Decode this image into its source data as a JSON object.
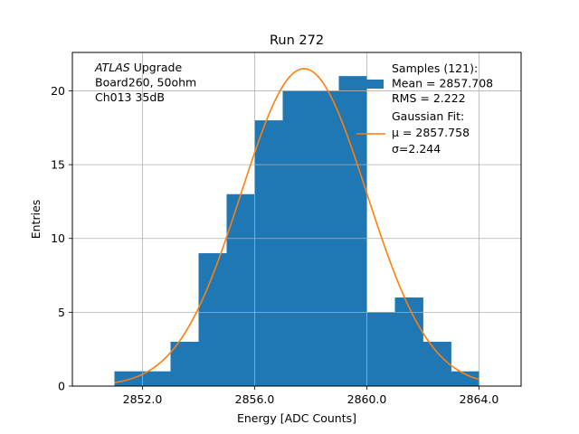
{
  "chart_data": {
    "type": "bar",
    "title": "Run 272",
    "xlabel": "Energy [ADC Counts]",
    "ylabel": "Entries",
    "xlim": [
      2849.5,
      2865.5
    ],
    "ylim": [
      0,
      22.6
    ],
    "xticks": [
      2852.0,
      2856.0,
      2860.0,
      2864.0
    ],
    "xtick_labels": [
      "2852.0",
      "2856.0",
      "2860.0",
      "2864.0"
    ],
    "yticks": [
      0,
      5,
      10,
      15,
      20
    ],
    "ytick_labels": [
      "0",
      "5",
      "10",
      "15",
      "20"
    ],
    "grid": true,
    "bin_edges": [
      2851,
      2852,
      2853,
      2854,
      2855,
      2856,
      2857,
      2858,
      2859,
      2860,
      2861,
      2862,
      2863,
      2864
    ],
    "values": [
      1,
      1,
      3,
      9,
      13,
      18,
      20,
      20,
      21,
      5,
      6,
      3,
      1
    ],
    "bar_color": "#1f77b4",
    "fit_color": "#ff7f0e",
    "fit": {
      "mu": 2857.758,
      "sigma": 2.244,
      "amplitude": 21.5,
      "x_range": [
        2851.0,
        2864.0
      ]
    },
    "annotation": {
      "lines": [
        {
          "italic": "ATLAS",
          "rest": " Upgrade"
        },
        {
          "italic": "",
          "rest": " Board260, 50ohm"
        },
        {
          "italic": "",
          "rest": " Ch013 35dB"
        }
      ]
    },
    "legend": {
      "position": "top-right",
      "entries": [
        {
          "kind": "bar",
          "lines": [
            "Samples (121):",
            " Mean = 2857.708",
            " RMS = 2.222"
          ]
        },
        {
          "kind": "line",
          "lines": [
            "Gaussian Fit:",
            " μ = 2857.758",
            " σ=2.244"
          ]
        }
      ]
    }
  }
}
